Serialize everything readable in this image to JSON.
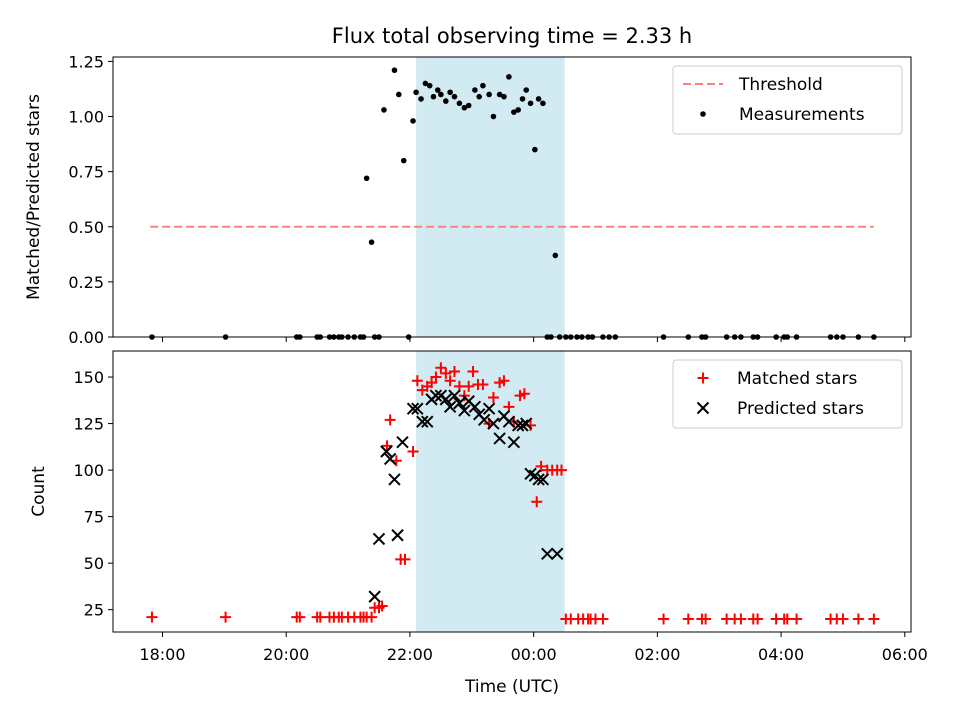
{
  "chart_data": {
    "title": "Flux total observing time = 2.33 h",
    "xlabel": "Time (UTC)",
    "xlim": [
      17.2,
      30.1
    ],
    "x_ticks": [
      {
        "value": 18,
        "label": "18:00"
      },
      {
        "value": 20,
        "label": "20:00"
      },
      {
        "value": 22,
        "label": "22:00"
      },
      {
        "value": 24,
        "label": "00:00"
      },
      {
        "value": 26,
        "label": "02:00"
      },
      {
        "value": 28,
        "label": "04:00"
      },
      {
        "value": 30,
        "label": "06:00"
      }
    ],
    "shaded_region": {
      "x": [
        22.1,
        24.5
      ],
      "color": "#add8e6"
    },
    "panels": [
      {
        "type": "scatter",
        "ylabel": "Matched/Predicted stars",
        "ylim": [
          0,
          1.27
        ],
        "y_ticks": [
          "0.00",
          "0.25",
          "0.50",
          "0.75",
          "1.00",
          "1.25"
        ],
        "y_tick_values": [
          0,
          0.25,
          0.5,
          0.75,
          1.0,
          1.25
        ],
        "legend": [
          "Threshold",
          "Measurements"
        ],
        "legend_position": "top-right",
        "threshold": {
          "name": "Threshold",
          "y": 0.5,
          "x": [
            17.8,
            29.5
          ],
          "color": "#ff7f7f"
        },
        "measurements": {
          "name": "Measurements",
          "color": "#000000",
          "x": [
            17.83,
            19.02,
            20.17,
            20.22,
            20.5,
            20.55,
            20.7,
            20.77,
            20.85,
            20.9,
            21.0,
            21.1,
            21.2,
            21.25,
            21.3,
            21.38,
            21.43,
            21.5,
            21.58,
            21.75,
            21.82,
            21.9,
            21.98,
            22.05,
            22.1,
            22.18,
            22.25,
            22.32,
            22.38,
            22.45,
            22.5,
            22.58,
            22.65,
            22.72,
            22.8,
            22.88,
            22.95,
            23.05,
            23.12,
            23.18,
            23.28,
            23.35,
            23.45,
            23.52,
            23.6,
            23.68,
            23.75,
            23.82,
            23.88,
            23.95,
            24.02,
            24.08,
            24.15,
            24.22,
            24.28,
            24.35,
            24.42,
            24.52,
            24.6,
            24.7,
            24.78,
            24.88,
            24.95,
            25.12,
            25.22,
            25.32,
            26.1,
            26.5,
            26.72,
            26.78,
            27.12,
            27.25,
            27.35,
            27.55,
            27.62,
            27.92,
            28.05,
            28.1,
            28.25,
            28.8,
            28.9,
            29.0,
            29.25,
            29.5
          ],
          "y": [
            0,
            0,
            0,
            0,
            0,
            0,
            0,
            0,
            0,
            0,
            0,
            0,
            0,
            0,
            0.72,
            0.43,
            0,
            0,
            1.03,
            1.21,
            1.1,
            0.8,
            0,
            0.98,
            1.11,
            1.08,
            1.15,
            1.14,
            1.09,
            1.12,
            1.1,
            1.07,
            1.11,
            1.09,
            1.06,
            1.04,
            1.05,
            1.12,
            1.09,
            1.14,
            1.1,
            1.0,
            1.1,
            1.09,
            1.18,
            1.02,
            1.03,
            1.08,
            1.12,
            1.06,
            0.85,
            1.08,
            1.06,
            0,
            0,
            0.37,
            0,
            0,
            0,
            0,
            0,
            0,
            0,
            0,
            0,
            0,
            0,
            0,
            0,
            0,
            0,
            0,
            0,
            0,
            0,
            0,
            0,
            0,
            0,
            0,
            0,
            0,
            0,
            0
          ]
        }
      },
      {
        "type": "scatter",
        "ylabel": "Count",
        "ylim": [
          13,
          164
        ],
        "y_ticks": [
          "25",
          "50",
          "75",
          "100",
          "125",
          "150"
        ],
        "y_tick_values": [
          25,
          50,
          75,
          100,
          125,
          150
        ],
        "legend": [
          "Matched stars",
          "Predicted stars"
        ],
        "legend_position": "top-right",
        "matched": {
          "name": "Matched stars",
          "color": "#ff0000",
          "x": [
            17.83,
            19.02,
            20.17,
            20.22,
            20.5,
            20.55,
            20.7,
            20.77,
            20.85,
            20.9,
            21.0,
            21.1,
            21.2,
            21.25,
            21.3,
            21.38,
            21.43,
            21.5,
            21.55,
            21.63,
            21.68,
            21.78,
            21.85,
            21.92,
            22.05,
            22.12,
            22.2,
            22.28,
            22.35,
            22.42,
            22.5,
            22.58,
            22.65,
            22.72,
            22.8,
            22.88,
            22.95,
            23.02,
            23.1,
            23.18,
            23.28,
            23.35,
            23.45,
            23.52,
            23.6,
            23.68,
            23.78,
            23.85,
            23.95,
            24.05,
            24.12,
            24.22,
            24.3,
            24.38,
            24.45,
            24.52,
            24.6,
            24.72,
            24.8,
            24.88,
            24.92,
            25.0,
            25.12,
            26.1,
            26.5,
            26.72,
            26.78,
            27.12,
            27.25,
            27.35,
            27.55,
            27.62,
            27.92,
            28.05,
            28.1,
            28.25,
            28.8,
            28.9,
            29.0,
            29.25,
            29.5
          ],
          "y": [
            21,
            21,
            21,
            21,
            21,
            21,
            21,
            21,
            21,
            21,
            21,
            21,
            21,
            21,
            21,
            21,
            26,
            26,
            27,
            113,
            127,
            105,
            52,
            52,
            110,
            148,
            143,
            145,
            147,
            150,
            155,
            152,
            148,
            153,
            145,
            140,
            145,
            153,
            146,
            146,
            125,
            139,
            147,
            148,
            134,
            126,
            140,
            141,
            124,
            83,
            102,
            100,
            100,
            100,
            100,
            20,
            20,
            20,
            20,
            20,
            20,
            20,
            20,
            20,
            20,
            20,
            20,
            20,
            20,
            20,
            20,
            20,
            20,
            20,
            20,
            20,
            20,
            20,
            20,
            20,
            20
          ]
        },
        "predicted": {
          "name": "Predicted stars",
          "color": "#000000",
          "x": [
            21.43,
            21.5,
            21.62,
            21.68,
            21.75,
            21.8,
            21.88,
            22.05,
            22.12,
            22.2,
            22.28,
            22.35,
            22.42,
            22.5,
            22.58,
            22.65,
            22.72,
            22.8,
            22.88,
            22.95,
            23.05,
            23.12,
            23.2,
            23.28,
            23.35,
            23.45,
            23.52,
            23.6,
            23.68,
            23.75,
            23.82,
            23.88,
            23.95,
            24.02,
            24.08,
            24.15,
            24.22,
            24.38
          ],
          "y": [
            32,
            63,
            110,
            106,
            95,
            65,
            115,
            133,
            133,
            126,
            126,
            138,
            140,
            140,
            138,
            134,
            140,
            136,
            132,
            137,
            134,
            130,
            127,
            133,
            125,
            117,
            129,
            126,
            115,
            124,
            124,
            125,
            98,
            97,
            95,
            95,
            55,
            55
          ]
        }
      }
    ]
  }
}
